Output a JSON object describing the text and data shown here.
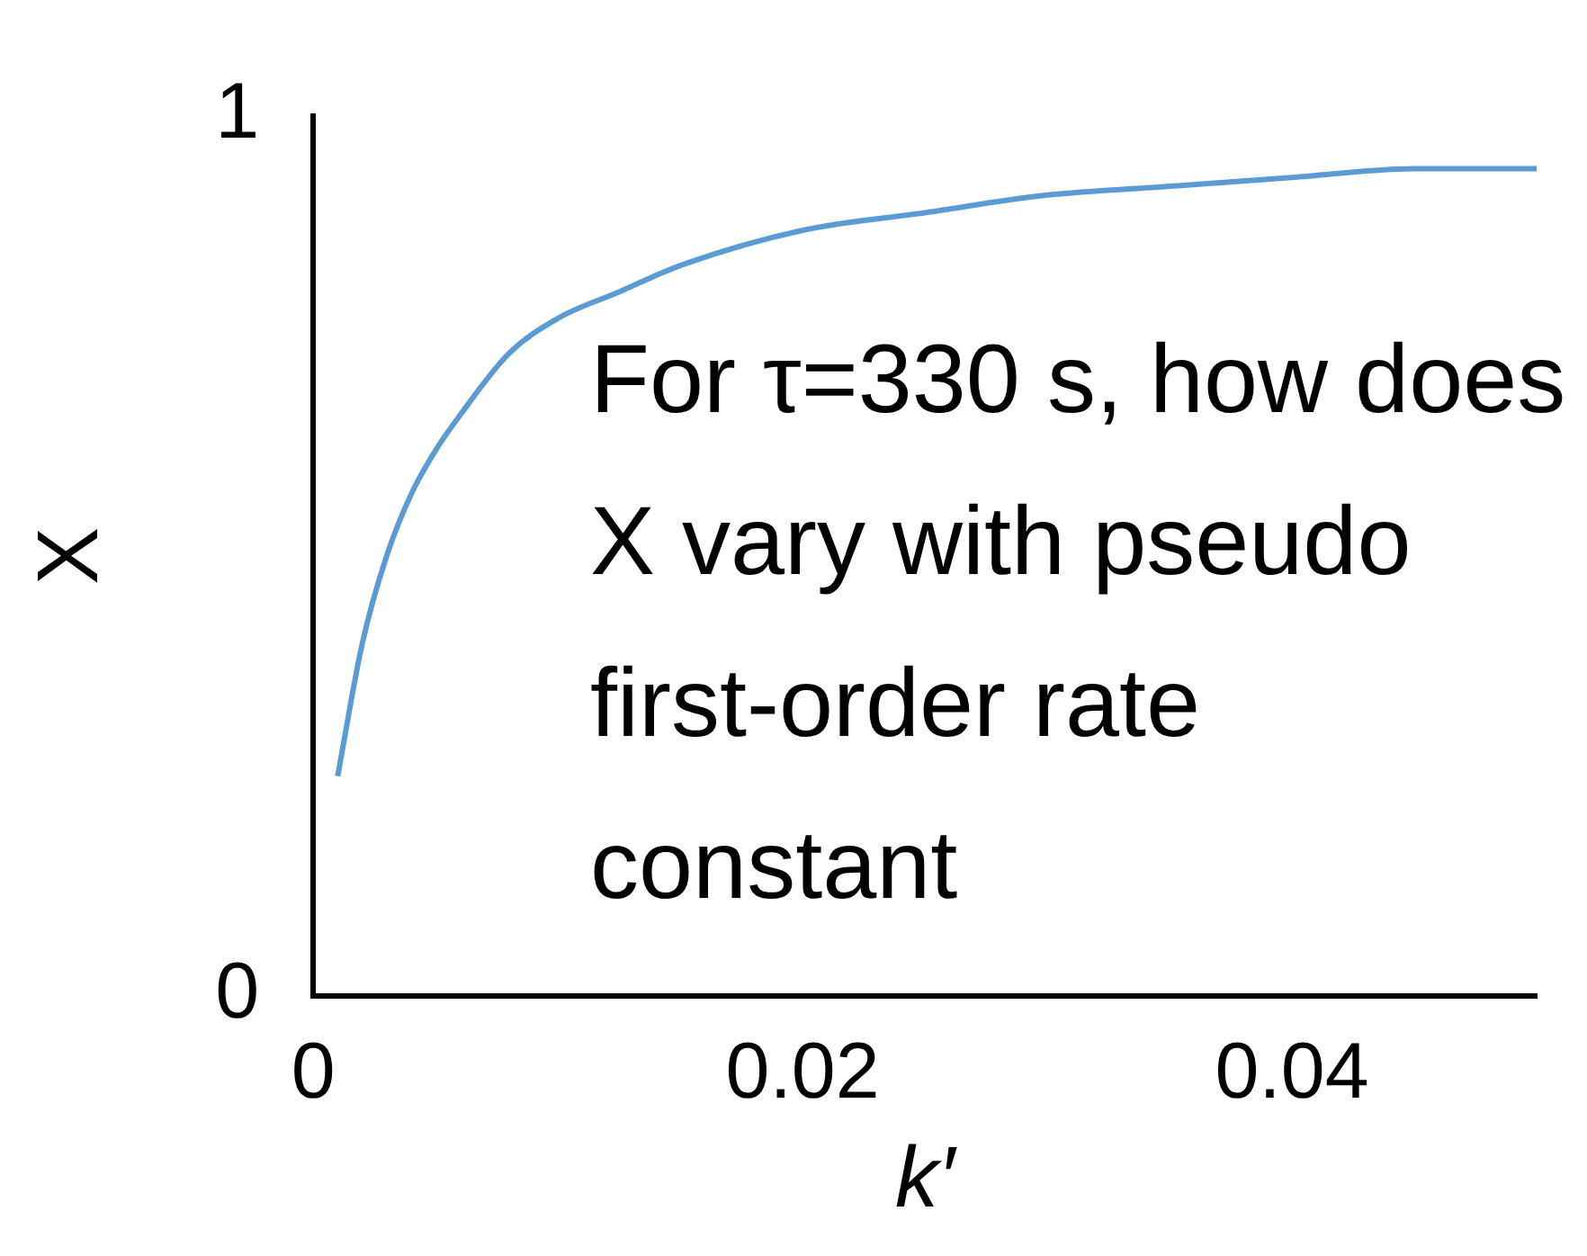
{
  "chart_data": {
    "type": "line",
    "x": [
      0.001,
      0.002,
      0.003,
      0.004,
      0.005,
      0.006,
      0.008,
      0.01,
      0.0125,
      0.015,
      0.02,
      0.025,
      0.03,
      0.035,
      0.04,
      0.045,
      0.05
    ],
    "series": [
      {
        "color": "#5b9bd5",
        "values": [
          0.25,
          0.4,
          0.5,
          0.57,
          0.62,
          0.66,
          0.73,
          0.77,
          0.8,
          0.83,
          0.87,
          0.89,
          0.91,
          0.92,
          0.93,
          0.94,
          0.94
        ]
      }
    ],
    "xlim": [
      0,
      0.05
    ],
    "xticks": [
      0,
      0.02,
      0.04
    ],
    "ylim": [
      0,
      1
    ],
    "yticks": [
      0,
      1
    ],
    "xlabel": "k′",
    "ylabel": "X",
    "grid": false,
    "legend": false,
    "marker": "none",
    "line_style": "solid",
    "annotations": [
      "For τ=330 s, how does X vary with pseudo first-order rate constant"
    ]
  }
}
